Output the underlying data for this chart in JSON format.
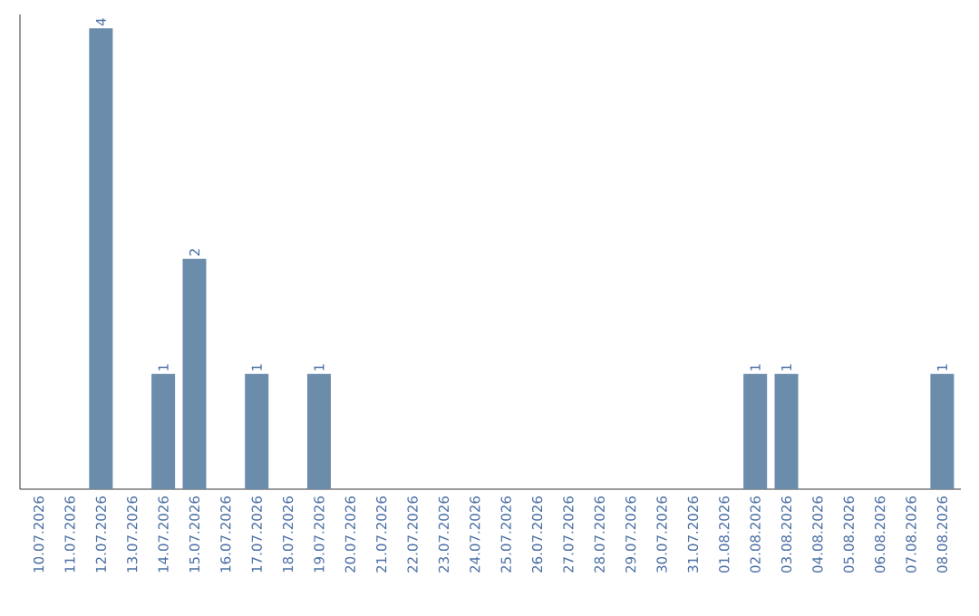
{
  "chart_data": {
    "type": "bar",
    "categories": [
      "10.07.2026",
      "11.07.2026",
      "12.07.2026",
      "13.07.2026",
      "14.07.2026",
      "15.07.2026",
      "16.07.2026",
      "17.07.2026",
      "18.07.2026",
      "19.07.2026",
      "20.07.2026",
      "21.07.2026",
      "22.07.2026",
      "23.07.2026",
      "24.07.2026",
      "25.07.2026",
      "26.07.2026",
      "27.07.2026",
      "28.07.2026",
      "29.07.2026",
      "30.07.2026",
      "31.07.2026",
      "01.08.2026",
      "02.08.2026",
      "03.08.2026",
      "04.08.2026",
      "05.08.2026",
      "06.08.2026",
      "07.08.2026",
      "08.08.2026"
    ],
    "values": [
      0,
      0,
      4,
      0,
      1,
      2,
      0,
      1,
      0,
      1,
      0,
      0,
      0,
      0,
      0,
      0,
      0,
      0,
      0,
      0,
      0,
      0,
      0,
      1,
      1,
      0,
      0,
      0,
      0,
      1
    ],
    "value_labels": [
      null,
      null,
      "4",
      null,
      "1",
      "2",
      null,
      "1",
      null,
      "1",
      null,
      null,
      null,
      null,
      null,
      null,
      null,
      null,
      null,
      null,
      null,
      null,
      null,
      "1",
      "1",
      null,
      null,
      null,
      null,
      "1"
    ],
    "color": "#6b8cab",
    "tick_labels": "x"
  }
}
